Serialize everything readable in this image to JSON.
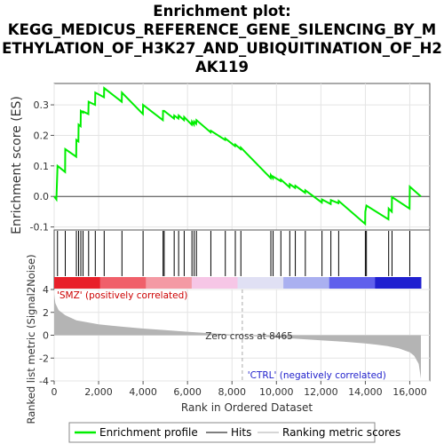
{
  "chart_data": {
    "type": "line",
    "title_lines": [
      "Enrichment plot:",
      "KEGG_MEDICUS_REFERENCE_GENE_SILENCING_BY_M",
      "ETHYLATION_OF_H3K27_AND_UBIQUITINATION_OF_H2",
      "AK119"
    ],
    "xlabel": "Rank in Ordered Dataset",
    "ylabel_top": "Enrichment score (ES)",
    "ylabel_bottom": "Ranked list metric (Signal2Noise)",
    "x_range": [
      0,
      16900
    ],
    "x_ticks": [
      0,
      2000,
      4000,
      6000,
      8000,
      10000,
      12000,
      14000,
      16000
    ],
    "x_tick_labels": [
      "0",
      "2,000",
      "4,000",
      "6,000",
      "8,000",
      "10,000",
      "12,000",
      "14,000",
      "16,000"
    ],
    "es_range": [
      -0.11,
      0.37
    ],
    "es_ticks": [
      -0.1,
      0.0,
      0.1,
      0.2,
      0.3
    ],
    "es_tick_labels": [
      "-0.1",
      "0.0",
      "0.1",
      "0.2",
      "0.3"
    ],
    "metric_range": [
      -4,
      4
    ],
    "metric_ticks": [
      -4,
      -2,
      0,
      2,
      4
    ],
    "metric_tick_labels": [
      "-4",
      "-2",
      "0",
      "2",
      "4"
    ],
    "hits": [
      150,
      500,
      1000,
      1100,
      1200,
      1300,
      1550,
      1850,
      2250,
      3050,
      4000,
      4900,
      4950,
      5400,
      5600,
      5850,
      6200,
      6300,
      6400,
      7050,
      7700,
      8150,
      8400,
      9750,
      9850,
      10200,
      10600,
      10850,
      11300,
      12050,
      12450,
      12800,
      14000,
      14050,
      15050,
      15200,
      16000
    ],
    "es_curve": [
      [
        0,
        0.0
      ],
      [
        100,
        -0.01
      ],
      [
        150,
        0.1
      ],
      [
        490,
        0.08
      ],
      [
        500,
        0.155
      ],
      [
        990,
        0.13
      ],
      [
        1000,
        0.185
      ],
      [
        1090,
        0.18
      ],
      [
        1100,
        0.235
      ],
      [
        1190,
        0.23
      ],
      [
        1200,
        0.28
      ],
      [
        1290,
        0.275
      ],
      [
        1300,
        0.278
      ],
      [
        1540,
        0.27
      ],
      [
        1550,
        0.31
      ],
      [
        1840,
        0.3
      ],
      [
        1850,
        0.34
      ],
      [
        2240,
        0.325
      ],
      [
        2250,
        0.355
      ],
      [
        3040,
        0.31
      ],
      [
        3050,
        0.34
      ],
      [
        3990,
        0.27
      ],
      [
        4000,
        0.3
      ],
      [
        4890,
        0.25
      ],
      [
        4900,
        0.28
      ],
      [
        4950,
        0.28
      ],
      [
        5390,
        0.255
      ],
      [
        5400,
        0.265
      ],
      [
        5590,
        0.255
      ],
      [
        5600,
        0.265
      ],
      [
        5840,
        0.25
      ],
      [
        5850,
        0.26
      ],
      [
        6190,
        0.235
      ],
      [
        6200,
        0.245
      ],
      [
        6290,
        0.235
      ],
      [
        6300,
        0.245
      ],
      [
        6390,
        0.238
      ],
      [
        6400,
        0.25
      ],
      [
        7040,
        0.21
      ],
      [
        7050,
        0.215
      ],
      [
        7690,
        0.185
      ],
      [
        7700,
        0.19
      ],
      [
        8140,
        0.165
      ],
      [
        8150,
        0.17
      ],
      [
        8390,
        0.155
      ],
      [
        8400,
        0.16
      ],
      [
        9740,
        0.06
      ],
      [
        9750,
        0.07
      ],
      [
        9840,
        0.06
      ],
      [
        9850,
        0.065
      ],
      [
        10190,
        0.05
      ],
      [
        10200,
        0.055
      ],
      [
        10590,
        0.03
      ],
      [
        10600,
        0.04
      ],
      [
        10840,
        0.028
      ],
      [
        10850,
        0.035
      ],
      [
        11290,
        0.012
      ],
      [
        11300,
        0.02
      ],
      [
        12040,
        -0.02
      ],
      [
        12050,
        -0.01
      ],
      [
        12440,
        -0.025
      ],
      [
        12450,
        -0.012
      ],
      [
        12790,
        -0.022
      ],
      [
        12800,
        -0.015
      ],
      [
        13990,
        -0.09
      ],
      [
        14000,
        -0.05
      ],
      [
        14050,
        -0.03
      ],
      [
        15040,
        -0.075
      ],
      [
        15050,
        -0.04
      ],
      [
        15190,
        -0.05
      ],
      [
        15200,
        -0.002
      ],
      [
        15990,
        -0.04
      ],
      [
        16000,
        0.032
      ],
      [
        16500,
        0.0
      ]
    ],
    "metric_curve": [
      [
        0,
        3.6
      ],
      [
        50,
        2.8
      ],
      [
        200,
        2.2
      ],
      [
        500,
        1.75
      ],
      [
        1000,
        1.3
      ],
      [
        2000,
        0.95
      ],
      [
        3000,
        0.75
      ],
      [
        4000,
        0.58
      ],
      [
        5000,
        0.44
      ],
      [
        6000,
        0.3
      ],
      [
        7000,
        0.17
      ],
      [
        8000,
        0.06
      ],
      [
        8465,
        0.0
      ],
      [
        9000,
        -0.08
      ],
      [
        10000,
        -0.2
      ],
      [
        11000,
        -0.32
      ],
      [
        12000,
        -0.44
      ],
      [
        13000,
        -0.57
      ],
      [
        14000,
        -0.72
      ],
      [
        14500,
        -0.82
      ],
      [
        15000,
        -0.95
      ],
      [
        15500,
        -1.15
      ],
      [
        16000,
        -1.5
      ],
      [
        16200,
        -1.8
      ],
      [
        16400,
        -2.5
      ],
      [
        16500,
        -3.8
      ]
    ],
    "heatmap_colors": [
      "#e8202a",
      "#f0606a",
      "#f49aa4",
      "#f6c6e6",
      "#e0e0f4",
      "#aab0f0",
      "#6060ec",
      "#2020d0"
    ],
    "labels": {
      "pos": "'SMZ' (positively correlated)",
      "neg": "'CTRL' (negatively correlated)",
      "zero_cross": "Zero cross at 8465"
    },
    "zero_cross": 8465,
    "legend": [
      {
        "label": "Enrichment profile",
        "color": "#00ee00"
      },
      {
        "label": "Hits",
        "color": "#555555"
      },
      {
        "label": "Ranking metric scores",
        "color": "#c8c8c8"
      }
    ],
    "colors": {
      "es_line": "#00ee00",
      "hit_line": "#000000",
      "metric_fill": "#b4b4b4",
      "pos_label": "#cc0000",
      "neg_label": "#2222cc"
    }
  }
}
